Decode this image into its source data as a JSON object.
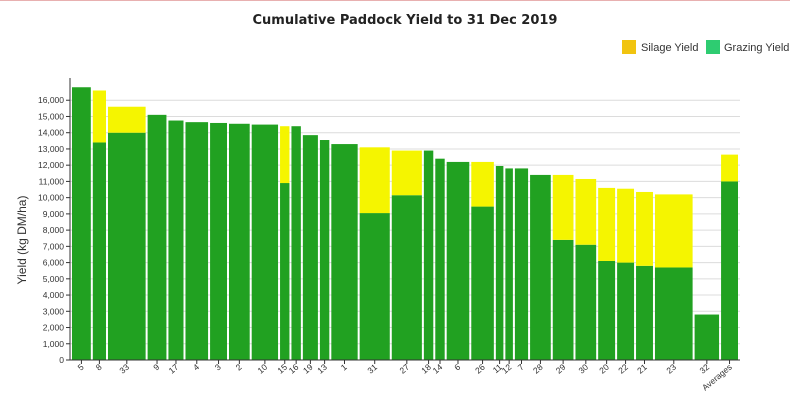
{
  "chart_data": {
    "type": "bar",
    "title": "Cumulative Paddock Yield to 31 Dec 2019",
    "ylabel": "Yield (kg DM/ha)",
    "xlabel": "",
    "ylim": [
      0,
      17000
    ],
    "yticks": [
      0,
      1000,
      2000,
      3000,
      4000,
      5000,
      6000,
      7000,
      8000,
      9000,
      10000,
      11000,
      12000,
      13000,
      14000,
      15000,
      16000
    ],
    "ytick_labels": [
      "0",
      "1,000",
      "2,000",
      "3,000",
      "4,000",
      "5,000",
      "6,000",
      "7,000",
      "8,000",
      "9,000",
      "10,000",
      "11,000",
      "12,000",
      "13,000",
      "14,000",
      "15,000",
      "16,000"
    ],
    "stacked": true,
    "variable_width": true,
    "legend_position": "top-right",
    "categories": [
      "5",
      "8",
      "33",
      "9",
      "17",
      "4",
      "3",
      "2",
      "10",
      "15",
      "16",
      "19",
      "13",
      "1",
      "31",
      "27",
      "18",
      "14",
      "6",
      "26",
      "11",
      "12",
      "7",
      "28",
      "29",
      "30",
      "20",
      "22",
      "21",
      "23",
      "32",
      "Averages"
    ],
    "area_ha": [
      1.0,
      0.7,
      2.0,
      1.0,
      0.8,
      1.2,
      0.9,
      1.1,
      1.4,
      0.5,
      0.5,
      0.8,
      0.5,
      1.4,
      1.6,
      1.6,
      0.5,
      0.5,
      1.2,
      1.2,
      0.4,
      0.4,
      0.7,
      1.1,
      1.1,
      1.1,
      0.9,
      0.9,
      0.9,
      2.0,
      1.3,
      0.9
    ],
    "series": [
      {
        "name": "Grazing Yield",
        "color": "#21a121",
        "legend_color": "#2ecc71",
        "values": [
          16800,
          13400,
          14000,
          15100,
          14750,
          14650,
          14600,
          14550,
          14500,
          10900,
          14400,
          13850,
          13550,
          13300,
          9050,
          10150,
          12900,
          12400,
          12200,
          9450,
          11950,
          11800,
          11800,
          11400,
          7400,
          7100,
          6100,
          6000,
          5800,
          5700,
          2800,
          11000
        ]
      },
      {
        "name": "Silage Yield",
        "color": "#f5f500",
        "legend_color": "#f1c40f",
        "values": [
          0,
          3200,
          1600,
          0,
          0,
          0,
          0,
          0,
          0,
          3500,
          0,
          0,
          0,
          0,
          4050,
          2750,
          0,
          0,
          0,
          2750,
          0,
          0,
          0,
          0,
          4000,
          4050,
          4500,
          4550,
          4550,
          4500,
          0,
          1650
        ]
      }
    ]
  }
}
